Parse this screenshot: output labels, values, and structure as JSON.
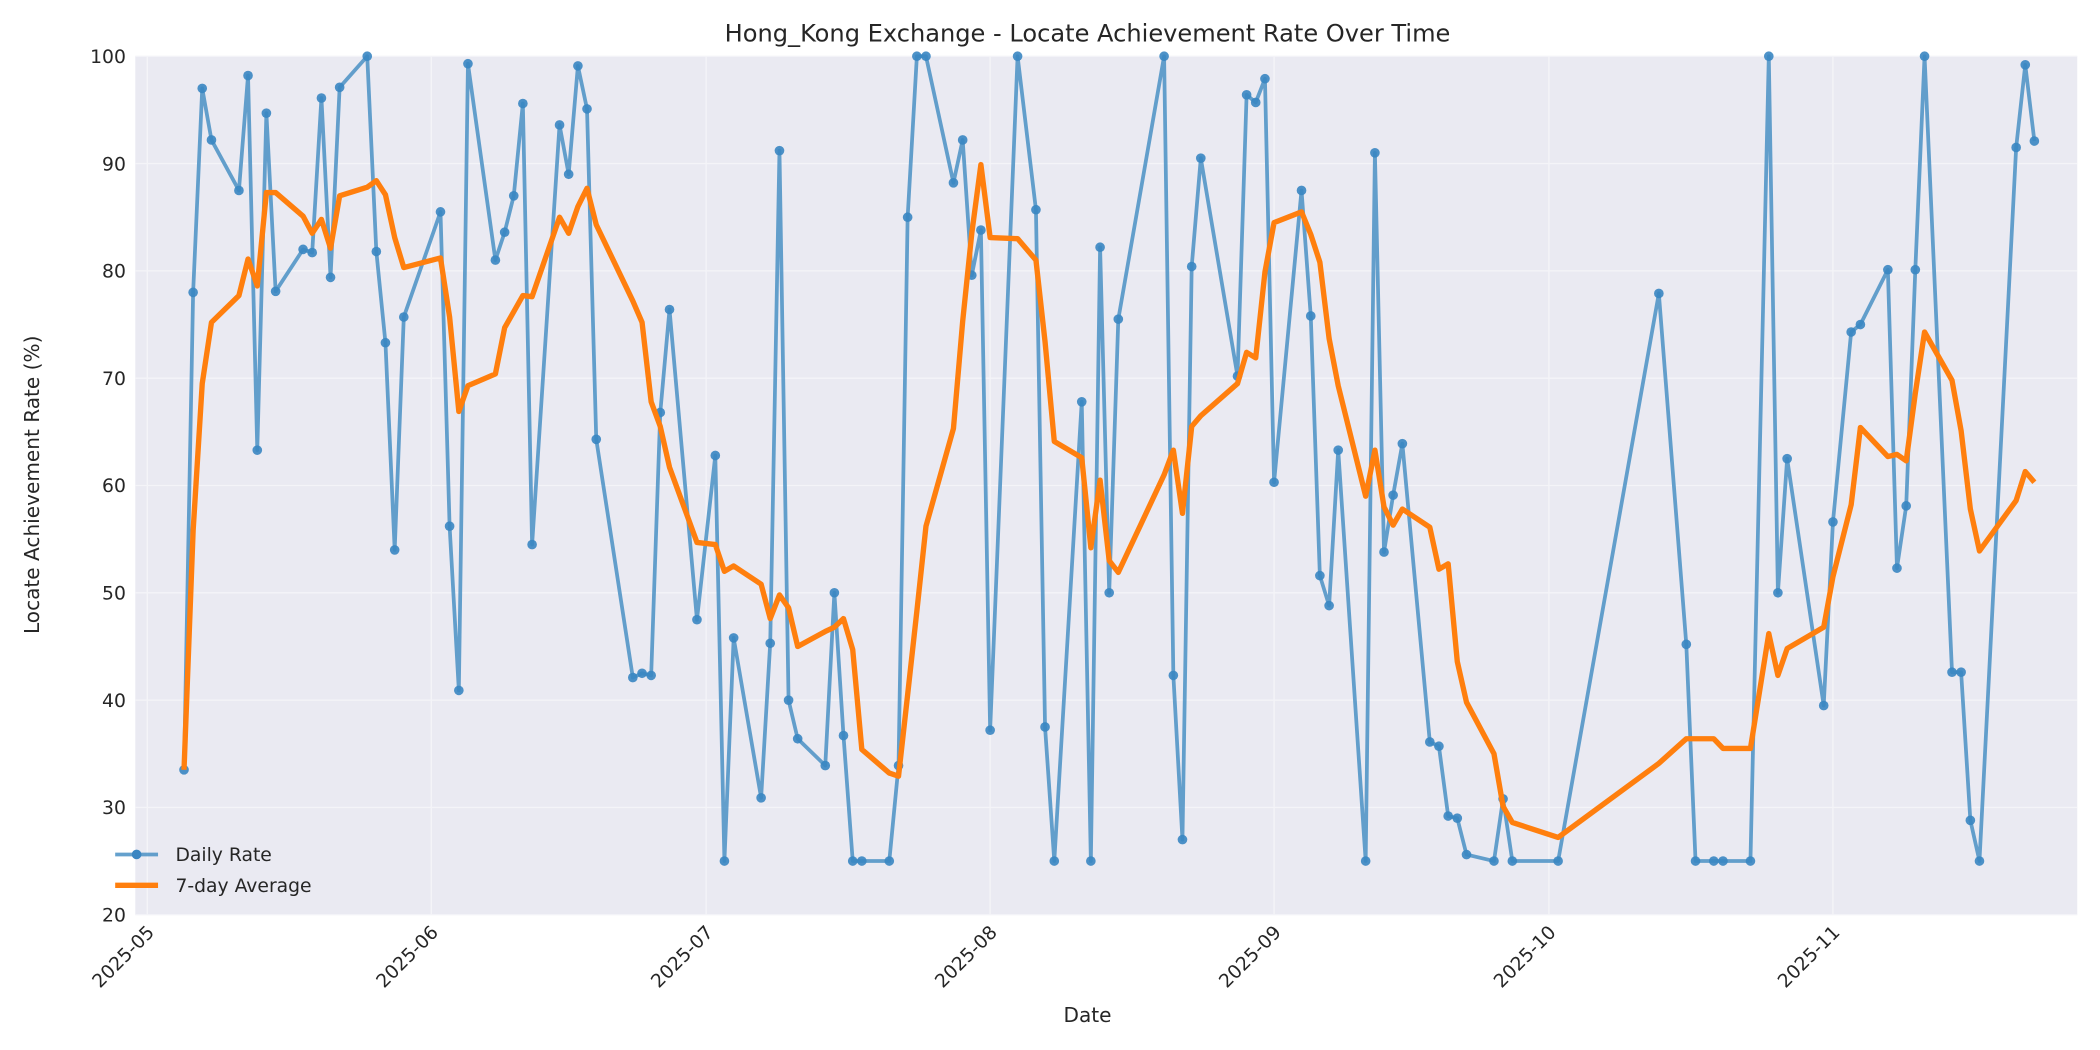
{
  "chart_data": {
    "type": "line",
    "title": "Hong_Kong Exchange - Locate Achievement Rate Over Time",
    "xlabel": "Date",
    "ylabel": "Locate Achievement Rate (%)",
    "ylim": [
      20,
      100
    ],
    "yticks": [
      20,
      30,
      40,
      50,
      60,
      70,
      80,
      90,
      100
    ],
    "xticks": [
      "2025-05",
      "2025-06",
      "2025-07",
      "2025-08",
      "2025-09",
      "2025-10",
      "2025-11"
    ],
    "grid": true,
    "legend_position": "lower left",
    "colors": {
      "daily": "#4a90c4",
      "avg": "#ff7f0e",
      "background": "#eaeaf2",
      "grid": "#f5f5fa"
    },
    "series": [
      {
        "name": "Daily Rate",
        "style": "line+marker",
        "points": [
          [
            "2025-05-05",
            33.5
          ],
          [
            "2025-05-06",
            78
          ],
          [
            "2025-05-07",
            97
          ],
          [
            "2025-05-08",
            92.2
          ],
          [
            "2025-05-11",
            87.5
          ],
          [
            "2025-05-12",
            98.2
          ],
          [
            "2025-05-13",
            63.3
          ],
          [
            "2025-05-14",
            94.7
          ],
          [
            "2025-05-15",
            78.1
          ],
          [
            "2025-05-18",
            82
          ],
          [
            "2025-05-19",
            81.7
          ],
          [
            "2025-05-20",
            96.1
          ],
          [
            "2025-05-21",
            79.4
          ],
          [
            "2025-05-22",
            97.1
          ],
          [
            "2025-05-25",
            100
          ],
          [
            "2025-05-26",
            81.8
          ],
          [
            "2025-05-27",
            73.3
          ],
          [
            "2025-05-28",
            54
          ],
          [
            "2025-05-29",
            75.7
          ],
          [
            "2025-06-02",
            85.5
          ],
          [
            "2025-06-03",
            56.2
          ],
          [
            "2025-06-04",
            40.9
          ],
          [
            "2025-06-05",
            99.3
          ],
          [
            "2025-06-08",
            81
          ],
          [
            "2025-06-09",
            83.6
          ],
          [
            "2025-06-10",
            87
          ],
          [
            "2025-06-11",
            95.6
          ],
          [
            "2025-06-12",
            54.5
          ],
          [
            "2025-06-15",
            93.6
          ],
          [
            "2025-06-16",
            89
          ],
          [
            "2025-06-17",
            99.1
          ],
          [
            "2025-06-18",
            95.1
          ],
          [
            "2025-06-19",
            64.3
          ],
          [
            "2025-06-23",
            42.1
          ],
          [
            "2025-06-24",
            42.5
          ],
          [
            "2025-06-25",
            42.3
          ],
          [
            "2025-06-26",
            66.8
          ],
          [
            "2025-06-27",
            76.4
          ],
          [
            "2025-06-30",
            47.5
          ],
          [
            "2025-07-02",
            62.8
          ],
          [
            "2025-07-03",
            25
          ],
          [
            "2025-07-04",
            45.8
          ],
          [
            "2025-07-07",
            30.9
          ],
          [
            "2025-07-08",
            45.3
          ],
          [
            "2025-07-09",
            91.2
          ],
          [
            "2025-07-10",
            40
          ],
          [
            "2025-07-11",
            36.4
          ],
          [
            "2025-07-14",
            33.9
          ],
          [
            "2025-07-15",
            50
          ],
          [
            "2025-07-16",
            36.7
          ],
          [
            "2025-07-17",
            25
          ],
          [
            "2025-07-18",
            25
          ],
          [
            "2025-07-21",
            25
          ],
          [
            "2025-07-22",
            33.9
          ],
          [
            "2025-07-23",
            85
          ],
          [
            "2025-07-24",
            100
          ],
          [
            "2025-07-25",
            100
          ],
          [
            "2025-07-28",
            88.2
          ],
          [
            "2025-07-29",
            92.2
          ],
          [
            "2025-07-30",
            79.6
          ],
          [
            "2025-07-31",
            83.8
          ],
          [
            "2025-08-01",
            37.2
          ],
          [
            "2025-08-04",
            100
          ],
          [
            "2025-08-06",
            85.7
          ],
          [
            "2025-08-07",
            37.5
          ],
          [
            "2025-08-08",
            25
          ],
          [
            "2025-08-11",
            67.8
          ],
          [
            "2025-08-12",
            25
          ],
          [
            "2025-08-13",
            82.2
          ],
          [
            "2025-08-14",
            50
          ],
          [
            "2025-08-15",
            75.5
          ],
          [
            "2025-08-20",
            100
          ],
          [
            "2025-08-21",
            42.3
          ],
          [
            "2025-08-22",
            27
          ],
          [
            "2025-08-23",
            80.4
          ],
          [
            "2025-08-24",
            90.5
          ],
          [
            "2025-08-28",
            70.2
          ],
          [
            "2025-08-29",
            96.4
          ],
          [
            "2025-08-30",
            95.7
          ],
          [
            "2025-08-31",
            97.9
          ],
          [
            "2025-09-01",
            60.3
          ],
          [
            "2025-09-04",
            87.5
          ],
          [
            "2025-09-05",
            75.8
          ],
          [
            "2025-09-06",
            51.6
          ],
          [
            "2025-09-07",
            48.8
          ],
          [
            "2025-09-08",
            63.3
          ],
          [
            "2025-09-11",
            25
          ],
          [
            "2025-09-12",
            91
          ],
          [
            "2025-09-13",
            53.8
          ],
          [
            "2025-09-14",
            59.1
          ],
          [
            "2025-09-15",
            63.9
          ],
          [
            "2025-09-18",
            36.1
          ],
          [
            "2025-09-19",
            35.7
          ],
          [
            "2025-09-20",
            29.2
          ],
          [
            "2025-09-21",
            29
          ],
          [
            "2025-09-22",
            25.6
          ],
          [
            "2025-09-25",
            25
          ],
          [
            "2025-09-26",
            30.8
          ],
          [
            "2025-09-27",
            25
          ],
          [
            "2025-10-02",
            25
          ],
          [
            "2025-10-13",
            77.9
          ],
          [
            "2025-10-16",
            45.2
          ],
          [
            "2025-10-17",
            25
          ],
          [
            "2025-10-19",
            25
          ],
          [
            "2025-10-20",
            25
          ],
          [
            "2025-10-23",
            25
          ],
          [
            "2025-10-25",
            100
          ],
          [
            "2025-10-26",
            50
          ],
          [
            "2025-10-27",
            62.5
          ],
          [
            "2025-10-31",
            39.5
          ],
          [
            "2025-11-01",
            56.6
          ],
          [
            "2025-11-03",
            74.3
          ],
          [
            "2025-11-04",
            75
          ],
          [
            "2025-11-07",
            80.1
          ],
          [
            "2025-11-08",
            52.3
          ],
          [
            "2025-11-09",
            58.1
          ],
          [
            "2025-11-10",
            80.1
          ],
          [
            "2025-11-11",
            100
          ],
          [
            "2025-11-14",
            42.6
          ],
          [
            "2025-11-15",
            42.6
          ],
          [
            "2025-11-16",
            28.8
          ],
          [
            "2025-11-17",
            25
          ],
          [
            "2025-11-21",
            91.5
          ],
          [
            "2025-11-22",
            99.2
          ],
          [
            "2025-11-23",
            92.1
          ]
        ]
      },
      {
        "name": "7-day Average",
        "style": "line",
        "points": [
          [
            "2025-05-05",
            33.5
          ],
          [
            "2025-05-06",
            55.8
          ],
          [
            "2025-05-07",
            69.5
          ],
          [
            "2025-05-08",
            75.2
          ],
          [
            "2025-05-11",
            77.7
          ],
          [
            "2025-05-12",
            81.1
          ],
          [
            "2025-05-13",
            78.6
          ],
          [
            "2025-05-14",
            87.3
          ],
          [
            "2025-05-15",
            87.3
          ],
          [
            "2025-05-18",
            85.1
          ],
          [
            "2025-05-19",
            83.5
          ],
          [
            "2025-05-20",
            84.8
          ],
          [
            "2025-05-21",
            82.1
          ],
          [
            "2025-05-22",
            87
          ],
          [
            "2025-05-25",
            87.8
          ],
          [
            "2025-05-26",
            88.4
          ],
          [
            "2025-05-27",
            87.1
          ],
          [
            "2025-05-28",
            83.1
          ],
          [
            "2025-05-29",
            80.3
          ],
          [
            "2025-06-02",
            81.2
          ],
          [
            "2025-06-03",
            75.7
          ],
          [
            "2025-06-04",
            66.9
          ],
          [
            "2025-06-05",
            69.3
          ],
          [
            "2025-06-08",
            70.4
          ],
          [
            "2025-06-09",
            74.7
          ],
          [
            "2025-06-10",
            76.2
          ],
          [
            "2025-06-11",
            77.7
          ],
          [
            "2025-06-12",
            77.6
          ],
          [
            "2025-06-15",
            85
          ],
          [
            "2025-06-16",
            83.5
          ],
          [
            "2025-06-17",
            86
          ],
          [
            "2025-06-18",
            87.7
          ],
          [
            "2025-06-19",
            84.3
          ],
          [
            "2025-06-23",
            77.2
          ],
          [
            "2025-06-24",
            75.2
          ],
          [
            "2025-06-25",
            67.8
          ],
          [
            "2025-06-26",
            65.5
          ],
          [
            "2025-06-27",
            61.7
          ],
          [
            "2025-06-30",
            54.7
          ],
          [
            "2025-07-02",
            54.5
          ],
          [
            "2025-07-03",
            52
          ],
          [
            "2025-07-04",
            52.5
          ],
          [
            "2025-07-07",
            50.8
          ],
          [
            "2025-07-08",
            47.6
          ],
          [
            "2025-07-09",
            49.8
          ],
          [
            "2025-07-10",
            48.6
          ],
          [
            "2025-07-11",
            45
          ],
          [
            "2025-07-14",
            46.4
          ],
          [
            "2025-07-15",
            46.8
          ],
          [
            "2025-07-16",
            47.6
          ],
          [
            "2025-07-17",
            44.7
          ],
          [
            "2025-07-18",
            35.4
          ],
          [
            "2025-07-21",
            33.2
          ],
          [
            "2025-07-22",
            32.9
          ],
          [
            "2025-07-23",
            40.5
          ],
          [
            "2025-07-24",
            48.3
          ],
          [
            "2025-07-25",
            56.2
          ],
          [
            "2025-07-28",
            65.3
          ],
          [
            "2025-07-29",
            75.3
          ],
          [
            "2025-07-30",
            83.5
          ],
          [
            "2025-07-31",
            89.9
          ],
          [
            "2025-08-01",
            83.1
          ],
          [
            "2025-08-04",
            83
          ],
          [
            "2025-08-06",
            81
          ],
          [
            "2025-08-07",
            73.4
          ],
          [
            "2025-08-08",
            64.1
          ],
          [
            "2025-08-11",
            62.6
          ],
          [
            "2025-08-12",
            54.2
          ],
          [
            "2025-08-13",
            60.5
          ],
          [
            "2025-08-14",
            53
          ],
          [
            "2025-08-15",
            51.9
          ],
          [
            "2025-08-20",
            61
          ],
          [
            "2025-08-21",
            63.3
          ],
          [
            "2025-08-22",
            57.4
          ],
          [
            "2025-08-23",
            65.5
          ],
          [
            "2025-08-24",
            66.5
          ],
          [
            "2025-08-28",
            69.5
          ],
          [
            "2025-08-29",
            72.4
          ],
          [
            "2025-08-30",
            71.9
          ],
          [
            "2025-08-31",
            79.9
          ],
          [
            "2025-09-01",
            84.5
          ],
          [
            "2025-09-04",
            85.5
          ],
          [
            "2025-09-05",
            83.4
          ],
          [
            "2025-09-06",
            80.8
          ],
          [
            "2025-09-07",
            73.7
          ],
          [
            "2025-09-08",
            69.3
          ],
          [
            "2025-09-11",
            59
          ],
          [
            "2025-09-12",
            63.3
          ],
          [
            "2025-09-13",
            58
          ],
          [
            "2025-09-14",
            56.3
          ],
          [
            "2025-09-15",
            57.8
          ],
          [
            "2025-09-18",
            56.1
          ],
          [
            "2025-09-19",
            52.2
          ],
          [
            "2025-09-20",
            52.7
          ],
          [
            "2025-09-21",
            43.6
          ],
          [
            "2025-09-22",
            39.8
          ],
          [
            "2025-09-25",
            35
          ],
          [
            "2025-09-26",
            30.1
          ],
          [
            "2025-09-27",
            28.6
          ],
          [
            "2025-10-02",
            27.2
          ],
          [
            "2025-10-13",
            34.1
          ],
          [
            "2025-10-16",
            36.4
          ],
          [
            "2025-10-17",
            36.4
          ],
          [
            "2025-10-19",
            36.4
          ],
          [
            "2025-10-20",
            35.5
          ],
          [
            "2025-10-23",
            35.5
          ],
          [
            "2025-10-25",
            46.2
          ],
          [
            "2025-10-26",
            42.3
          ],
          [
            "2025-10-27",
            44.8
          ],
          [
            "2025-10-31",
            46.8
          ],
          [
            "2025-11-01",
            51.5
          ],
          [
            "2025-11-03",
            58.2
          ],
          [
            "2025-11-04",
            65.4
          ],
          [
            "2025-11-07",
            62.7
          ],
          [
            "2025-11-08",
            62.9
          ],
          [
            "2025-11-09",
            62.3
          ],
          [
            "2025-11-10",
            68.6
          ],
          [
            "2025-11-11",
            74.3
          ],
          [
            "2025-11-14",
            69.8
          ],
          [
            "2025-11-15",
            65.1
          ],
          [
            "2025-11-16",
            57.8
          ],
          [
            "2025-11-17",
            53.9
          ],
          [
            "2025-11-21",
            58.6
          ],
          [
            "2025-11-22",
            61.3
          ],
          [
            "2025-11-23",
            60.3
          ]
        ]
      }
    ]
  },
  "legend": {
    "items": [
      {
        "label": "Daily Rate",
        "color": "#4a90c4"
      },
      {
        "label": "7-day Average",
        "color": "#ff7f0e"
      }
    ]
  }
}
